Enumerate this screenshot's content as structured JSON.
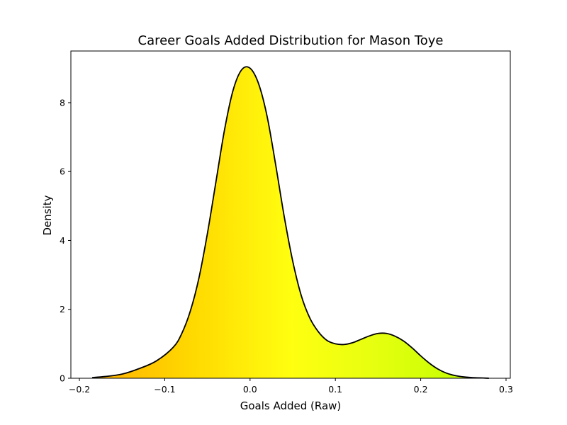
{
  "chart_data": {
    "type": "area",
    "title": "Career Goals Added Distribution for Mason Toye",
    "xlabel": "Goals Added (Raw)",
    "ylabel": "Density",
    "xlim": [
      -0.21,
      0.305
    ],
    "ylim": [
      0,
      9.5
    ],
    "xticks": [
      -0.2,
      -0.1,
      0.0,
      0.1,
      0.2,
      0.3
    ],
    "xtick_labels": [
      "−0.2",
      "−0.1",
      "0.0",
      "0.1",
      "0.2",
      "0.3"
    ],
    "yticks": [
      0,
      2,
      4,
      6,
      8
    ],
    "ytick_labels": [
      "0",
      "2",
      "4",
      "6",
      "8"
    ],
    "grid": false,
    "line_color": "#000000",
    "fill_gradient": {
      "x_stops": [
        -0.185,
        -0.07,
        0.05,
        0.14,
        0.28
      ],
      "colors": [
        "#ffb000",
        "#ffd800",
        "#ffff10",
        "#e8ff10",
        "#bbff00"
      ]
    },
    "series": [
      {
        "x": [
          -0.185,
          -0.17,
          -0.15,
          -0.13,
          -0.11,
          -0.09,
          -0.08,
          -0.07,
          -0.06,
          -0.05,
          -0.04,
          -0.03,
          -0.02,
          -0.01,
          0.0,
          0.01,
          0.02,
          0.03,
          0.04,
          0.05,
          0.06,
          0.07,
          0.08,
          0.09,
          0.1,
          0.11,
          0.12,
          0.13,
          0.14,
          0.15,
          0.16,
          0.17,
          0.18,
          0.19,
          0.2,
          0.21,
          0.22,
          0.23,
          0.24,
          0.25,
          0.26,
          0.28
        ],
        "values": [
          0.02,
          0.05,
          0.12,
          0.28,
          0.5,
          0.9,
          1.3,
          1.95,
          2.9,
          4.2,
          5.7,
          7.2,
          8.35,
          8.95,
          9.0,
          8.55,
          7.6,
          6.2,
          4.7,
          3.4,
          2.4,
          1.75,
          1.35,
          1.1,
          1.0,
          0.98,
          1.03,
          1.13,
          1.23,
          1.3,
          1.3,
          1.22,
          1.08,
          0.88,
          0.65,
          0.44,
          0.27,
          0.15,
          0.08,
          0.04,
          0.02,
          0.0
        ]
      }
    ]
  }
}
